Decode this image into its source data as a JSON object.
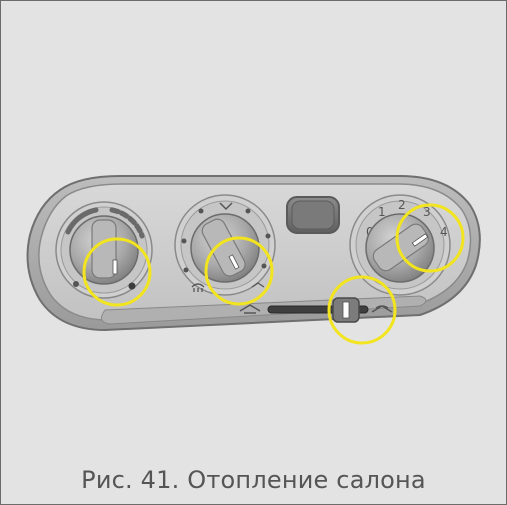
{
  "figure": {
    "caption": "Рис. 41. Отопление салона"
  },
  "right_knob": {
    "scale_labels": [
      "0",
      "1",
      "2",
      "3",
      "4"
    ]
  },
  "colors": {
    "background": "#e3e3e3",
    "panel_outer": "#8e8e8e",
    "panel_face": "#cfcfcf",
    "knob": "#a9a9a9",
    "highlight_ring": "#f2e41e",
    "caption_text": "#555555"
  },
  "icons": {
    "temperature_scale": "blue-red-arc",
    "airflow_left": "airflow-face-icon",
    "airflow_right": "airflow-feet-icon",
    "defrost": "windshield-defrost-icon",
    "recirc_fresh_air": "fresh-air-icon",
    "recirc_closed": "recirculation-icon"
  }
}
